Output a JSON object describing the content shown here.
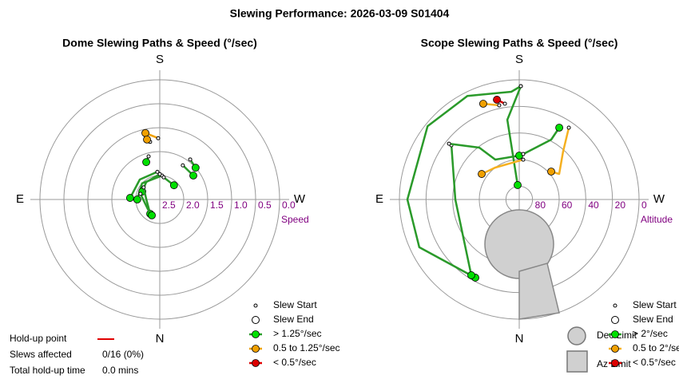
{
  "title": "Slewing Performance: 2026-03-09 S01404",
  "chart_data": [
    {
      "type": "polar",
      "title": "Dome Slewing Paths & Speed (°/sec)",
      "r_label": "Speed",
      "rlim": [
        2.5,
        0
      ],
      "rticks": [
        2.5,
        {
          "value": 2,
          "label": "2.0"
        },
        1.5,
        {
          "value": 1,
          "label": "1.0"
        },
        0.5,
        {
          "value": 0,
          "label": "0.0"
        }
      ],
      "angle_ticks": [
        {
          "value": 180,
          "label": "S"
        },
        {
          "value": 270,
          "label": "W"
        },
        {
          "value": 0,
          "label": "N"
        },
        {
          "value": 90,
          "label": "E"
        }
      ],
      "legend_labels": [
        "Slew Start",
        "Slew End"
      ],
      "series": [
        {
          "name": "> 1.25°/sec",
          "color": "#2a9a2a",
          "marker_color": "#00e000",
          "slews": [
            {
              "az": [
                165.5,
                160.1
              ],
              "values": [
                1.57,
                1.67
              ]
            },
            {
              "az": [
                217.2,
                228.4
              ],
              "values": [
                1.45,
                1.5
              ]
            },
            {
              "az": [
                214,
                234.5
              ],
              "values": [
                1.64,
                1.64
              ]
            },
            {
              "az": [
                175,
                135,
                93
              ],
              "values": [
                1.92,
                1.91,
                1.88
              ]
            },
            {
              "az": [
                185.7,
                132.3,
                90
              ],
              "values": [
                2.0,
                2.0,
                2.03
              ]
            },
            {
              "az": [
                180,
                142.3,
                114.4
              ],
              "values": [
                1.97,
                2.04,
                2.1
              ]
            },
            {
              "az": [
                190.1,
                225
              ],
              "values": [
                2.03,
                2.08
              ]
            },
            {
              "az": [
                126.9,
                90,
                33.7
              ],
              "values": [
                2.08,
                2.22,
                2.14
              ]
            },
            {
              "az": [
                106.3,
                51.3,
                26.6
              ],
              "values": [
                2.08,
                2.18,
                2.13
              ]
            }
          ]
        },
        {
          "name": "0.5 to 1.25°/sec",
          "color": "#f0a000",
          "marker_color": "#f0a000",
          "slews": [
            {
              "az": [
                178.5,
                167.8
              ],
              "values": [
                1.22,
                1.08
              ]
            },
            {
              "az": [
                170.5,
                168
              ],
              "values": [
                1.28,
                1.22
              ]
            }
          ]
        },
        {
          "name": "< 0.5°/sec",
          "color": "#dd0000",
          "marker_color": "#dd0000",
          "slews": []
        }
      ]
    },
    {
      "type": "polar",
      "title": "Scope Slewing Paths & Speed (°/sec)",
      "r_label": "Altitude",
      "rlim": [
        90,
        0
      ],
      "rticks": [
        80,
        60,
        40,
        20,
        0
      ],
      "angle_ticks": [
        {
          "value": 180,
          "label": "S"
        },
        {
          "value": 270,
          "label": "W"
        },
        {
          "value": 0,
          "label": "N"
        },
        {
          "value": 90,
          "label": "E"
        }
      ],
      "legend_labels": [
        "Slew Start",
        "Slew End"
      ],
      "series": [
        {
          "name": "> 2°/sec",
          "color": "#2a9a2a",
          "marker_color": "#00e000",
          "slews": [
            {
              "az": [
                180.8,
                175.8,
                153.4,
                128.7,
                90,
                64.4,
                29.3
              ],
              "values": [
                4.8,
                8.8,
                3,
                1.8,
                6,
                6.8,
                22.6
              ]
            },
            {
              "az": [
                128.7,
                90,
                32.3
              ],
              "values": [
                24.7,
                42,
                22.6
              ]
            },
            {
              "az": [
                128.5,
                142.4,
                149,
                180
              ],
              "values": [
                22.6,
                40.8,
                55,
                57
              ]
            },
            {
              "az": [
                185,
                208.1,
                209.1
              ],
              "values": [
                55.7,
                39,
                28.2
              ]
            },
            {
              "az": [
                180.8,
                171.5,
                173.7
              ],
              "values": [
                4.8,
                29.4,
                79.1
              ]
            }
          ]
        },
        {
          "name": "0.5 to 2°/sec",
          "color": "#f5b020",
          "marker_color": "#f0a000",
          "slews": [
            {
              "az": [
                214.6,
                222.5,
                237.4,
                228.8
              ],
              "values": [
                24.4,
                41.2,
                54.4,
                58.1
              ]
            },
            {
              "az": [
                185.7,
                143.1,
                124.2
              ],
              "values": [
                59.9,
                60,
                55.9
              ]
            },
            {
              "az": [
                168,
                159.4
              ],
              "values": [
                17.6,
                13.1
              ]
            }
          ]
        },
        {
          "name": "< 0.5°/sec",
          "color": "#dd0000",
          "marker_color": "#dd0000",
          "slews": [
            {
              "az": [
                171.5,
                167.4
              ],
              "values": [
                17.2,
                13.1
              ]
            }
          ]
        }
      ]
    }
  ],
  "hold_up": {
    "point_label": "Hold-up point",
    "affected_label": "Slews affected",
    "affected_value": "0/16 (0%)",
    "time_label": "Total hold-up time",
    "time_value": "0.0 mins"
  },
  "limits_legend": [
    "Dec Limit",
    "Az Limit"
  ]
}
